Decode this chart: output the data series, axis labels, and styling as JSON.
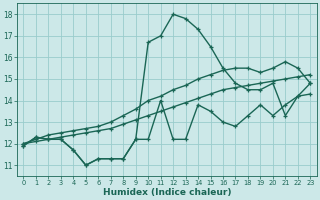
{
  "xlabel": "Humidex (Indice chaleur)",
  "ylabel": "",
  "xlim": [
    -0.5,
    23.5
  ],
  "ylim": [
    10.5,
    18.5
  ],
  "xticks": [
    0,
    1,
    2,
    3,
    4,
    5,
    6,
    7,
    8,
    9,
    10,
    11,
    12,
    13,
    14,
    15,
    16,
    17,
    18,
    19,
    20,
    21,
    22,
    23
  ],
  "yticks": [
    11,
    12,
    13,
    14,
    15,
    16,
    17,
    18
  ],
  "background_color": "#cce8e8",
  "grid_color": "#99cccc",
  "line_color": "#1a6655",
  "lines": [
    {
      "x": [
        0,
        1,
        2,
        3,
        4,
        5,
        6,
        7,
        8,
        9,
        10,
        11,
        12,
        13,
        14,
        15,
        16,
        17,
        18,
        19,
        20,
        21,
        22,
        23
      ],
      "y": [
        11.9,
        12.3,
        12.2,
        12.2,
        11.7,
        11.0,
        11.3,
        11.3,
        11.3,
        12.2,
        16.7,
        17.0,
        18.0,
        17.8,
        17.3,
        16.5,
        15.5,
        14.8,
        14.5,
        14.5,
        14.8,
        13.3,
        14.2,
        14.8
      ]
    },
    {
      "x": [
        0,
        1,
        2,
        3,
        4,
        5,
        6,
        7,
        8,
        9,
        10,
        11,
        12,
        13,
        14,
        15,
        16,
        17,
        18,
        19,
        20,
        21,
        22,
        23
      ],
      "y": [
        12.0,
        12.1,
        12.2,
        12.3,
        12.4,
        12.5,
        12.6,
        12.7,
        12.9,
        13.1,
        13.3,
        13.5,
        13.7,
        13.9,
        14.1,
        14.3,
        14.5,
        14.6,
        14.7,
        14.8,
        14.9,
        15.0,
        15.1,
        15.2
      ]
    },
    {
      "x": [
        0,
        1,
        2,
        3,
        4,
        5,
        6,
        7,
        8,
        9,
        10,
        11,
        12,
        13,
        14,
        15,
        16,
        17,
        18,
        19,
        20,
        21,
        22,
        23
      ],
      "y": [
        12.0,
        12.2,
        12.4,
        12.5,
        12.6,
        12.7,
        12.8,
        13.0,
        13.3,
        13.6,
        14.0,
        14.2,
        14.5,
        14.7,
        15.0,
        15.2,
        15.4,
        15.5,
        15.5,
        15.3,
        15.5,
        15.8,
        15.5,
        14.8
      ]
    },
    {
      "x": [
        0,
        1,
        2,
        3,
        4,
        5,
        6,
        7,
        8,
        9,
        10,
        11,
        12,
        13,
        14,
        15,
        16,
        17,
        18,
        19,
        20,
        21,
        22,
        23
      ],
      "y": [
        11.9,
        12.3,
        12.2,
        12.2,
        11.7,
        11.0,
        11.3,
        11.3,
        11.3,
        12.2,
        12.2,
        14.0,
        12.2,
        12.2,
        13.8,
        13.5,
        13.0,
        12.8,
        13.3,
        13.8,
        13.3,
        13.8,
        14.2,
        14.3
      ]
    }
  ],
  "marker": "+",
  "markersize": 3.5,
  "linewidth": 1.0
}
